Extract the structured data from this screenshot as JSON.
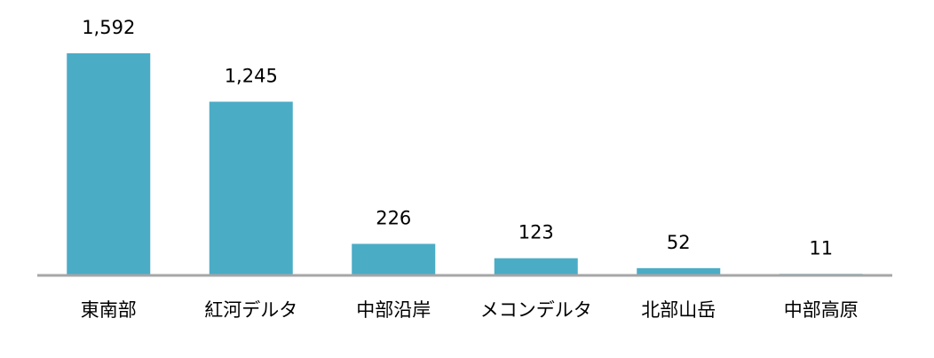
{
  "chart_data": {
    "type": "bar",
    "categories": [
      "東南部",
      "紅河デルタ",
      "中部沿岸",
      "メコンデルタ",
      "北部山岳",
      "中部高原"
    ],
    "values": [
      1592,
      1245,
      226,
      123,
      52,
      11
    ],
    "value_labels": [
      "1,592",
      "1,245",
      "226",
      "123",
      "52",
      "11"
    ],
    "title": "",
    "xlabel": "",
    "ylabel": "",
    "ylim": [
      0,
      1600
    ],
    "grid": false,
    "legend": "none",
    "bar_color": "#4BACC6",
    "axis_color": "#A6A6A6"
  }
}
